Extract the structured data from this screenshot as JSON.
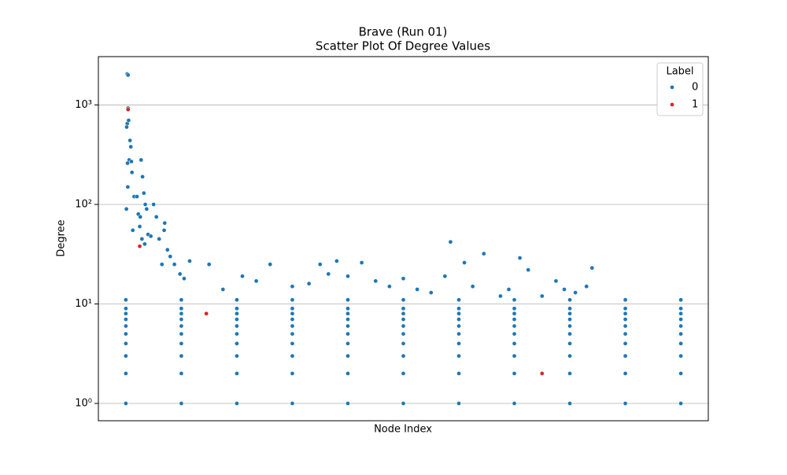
{
  "chart_data": {
    "type": "scatter",
    "title": "Brave (Run 01)",
    "subtitle": "Scatter Plot Of Degree Values",
    "x_label": "Node Index",
    "y_label": "Degree",
    "legend_title": "Label",
    "legend_position": "upper right",
    "y_log": true,
    "grid": true,
    "xlim": [
      -99,
      2099
    ],
    "ylim": [
      0.67,
      3060
    ],
    "yticks": [
      {
        "value": 1,
        "label": "10⁰"
      },
      {
        "value": 10,
        "label": "10¹"
      },
      {
        "value": 100,
        "label": "10²"
      },
      {
        "value": 1000,
        "label": "10³"
      }
    ],
    "series": [
      {
        "name": "0",
        "color": "#1f77b4",
        "x": [
          5,
          8,
          8,
          5,
          3,
          10,
          15,
          18,
          12,
          20,
          6,
          22,
          7,
          2,
          30,
          25,
          40,
          50,
          55,
          60,
          65,
          70,
          45,
          52,
          58,
          68,
          75,
          80,
          90,
          100,
          110,
          120,
          130,
          138,
          140,
          150,
          160,
          175,
          195,
          210,
          230,
          300,
          350,
          420,
          470,
          520,
          600,
          660,
          700,
          730,
          760,
          800,
          850,
          900,
          950,
          1000,
          1050,
          1100,
          1150,
          1170,
          1220,
          1250,
          1290,
          1350,
          1380,
          1420,
          1450,
          1500,
          1550,
          1580,
          1620,
          1660,
          1680,
          0,
          200,
          400,
          600,
          800,
          1000,
          1200,
          1400,
          1600,
          1800,
          2000,
          0,
          200,
          400,
          600,
          800,
          1000,
          1200,
          1400,
          1600,
          1800,
          2000,
          0,
          200,
          400,
          600,
          800,
          1000,
          1200,
          1400,
          1600,
          1800,
          2000,
          0,
          200,
          400,
          600,
          800,
          1000,
          1200,
          1400,
          1600,
          1800,
          2000,
          0,
          200,
          400,
          600,
          800,
          1000,
          1200,
          1400,
          1600,
          1800,
          2000,
          0,
          200,
          400,
          600,
          800,
          1000,
          1200,
          1400,
          1600,
          1800,
          2000,
          0,
          200,
          400,
          600,
          800,
          1000,
          1200,
          1400,
          1600,
          1800,
          2000,
          0,
          200,
          400,
          600,
          800,
          1000,
          1200,
          1400,
          1600,
          1800,
          2000,
          0,
          200,
          400,
          600,
          800,
          1000,
          1200,
          1400,
          1600,
          1800,
          2000,
          0,
          200,
          400,
          600,
          800,
          1000,
          1200,
          1400,
          1600,
          1800,
          2000
        ],
        "values": [
          2050,
          2000,
          930,
          650,
          600,
          700,
          440,
          380,
          280,
          270,
          260,
          210,
          150,
          90,
          120,
          55,
          120,
          60,
          280,
          190,
          130,
          100,
          80,
          75,
          45,
          40,
          90,
          50,
          48,
          100,
          75,
          45,
          25,
          55,
          65,
          35,
          30,
          25,
          20,
          18,
          27,
          25,
          14,
          19,
          17,
          25,
          15,
          16,
          25,
          20,
          27,
          19,
          26,
          17,
          15,
          18,
          14,
          13,
          19,
          42,
          26,
          15,
          32,
          12,
          14,
          29,
          22,
          12,
          17,
          14,
          13,
          15,
          23,
          11,
          11,
          11,
          11,
          11,
          11,
          11,
          11,
          11,
          11,
          11,
          9,
          9,
          9,
          9,
          9,
          9,
          9,
          9,
          9,
          9,
          9,
          8,
          8,
          8,
          8,
          8,
          8,
          8,
          8,
          8,
          8,
          8,
          7,
          7,
          7,
          7,
          7,
          7,
          7,
          7,
          7,
          7,
          7,
          6,
          6,
          6,
          6,
          6,
          6,
          6,
          6,
          6,
          6,
          6,
          5,
          5,
          5,
          5,
          5,
          5,
          5,
          5,
          5,
          5,
          5,
          4,
          4,
          4,
          4,
          4,
          4,
          4,
          4,
          4,
          4,
          4,
          3,
          3,
          3,
          3,
          3,
          3,
          3,
          3,
          3,
          3,
          3,
          2,
          2,
          2,
          2,
          2,
          2,
          2,
          2,
          2,
          2,
          2,
          1,
          1,
          1,
          1,
          1,
          1,
          1,
          1,
          1,
          1,
          1
        ]
      },
      {
        "name": "1",
        "color": "#d62728",
        "x": [
          8,
          50,
          290,
          1500
        ],
        "values": [
          900,
          38,
          8,
          2
        ]
      }
    ]
  }
}
